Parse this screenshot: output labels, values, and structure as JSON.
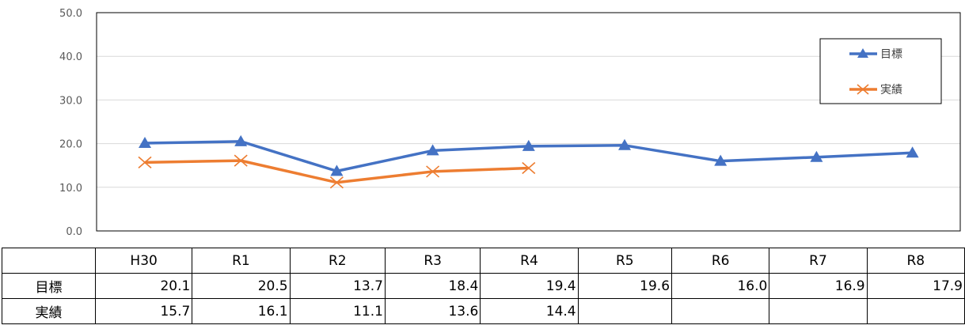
{
  "chart_data": {
    "type": "line",
    "categories": [
      "H30",
      "R1",
      "R2",
      "R3",
      "R4",
      "R5",
      "R6",
      "R7",
      "R8"
    ],
    "ylim": [
      0,
      50
    ],
    "yticks": [
      "0.0",
      "10.0",
      "20.0",
      "30.0",
      "40.0",
      "50.0"
    ],
    "grid": true,
    "legend_position": "top-right",
    "series": [
      {
        "name": "目標",
        "color": "#4472C4",
        "marker": "triangle",
        "values": [
          20.1,
          20.5,
          13.7,
          18.4,
          19.4,
          19.6,
          16.0,
          16.9,
          17.9
        ]
      },
      {
        "name": "実績",
        "color": "#ED7D31",
        "marker": "x",
        "values": [
          15.7,
          16.1,
          11.1,
          13.6,
          14.4,
          null,
          null,
          null,
          null
        ]
      }
    ]
  },
  "table": {
    "rows": [
      {
        "label": "目標",
        "cells": [
          "20.1",
          "20.5",
          "13.7",
          "18.4",
          "19.4",
          "19.6",
          "16.0",
          "16.9",
          "17.9"
        ]
      },
      {
        "label": "実績",
        "cells": [
          "15.7",
          "16.1",
          "11.1",
          "13.6",
          "14.4",
          "",
          "",
          "",
          ""
        ]
      }
    ]
  }
}
